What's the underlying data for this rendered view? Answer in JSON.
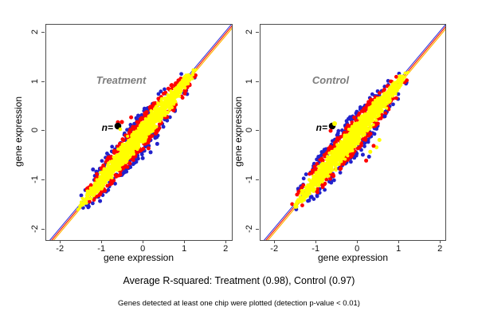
{
  "captions": {
    "r_squared": "Average R-squared: Treatment (0.98), Control (0.97)",
    "note": "Genes detected at least one chip were plotted (detection p-value < 0.01)"
  },
  "colors": {
    "dense_points": "#ffff00",
    "edge_points": "#ff0000",
    "outer_points": "#2222cc",
    "line_blue": "#4444dd",
    "line_red": "#ff2000",
    "line_yellow": "#ffb300",
    "axis": "#4d4d4d",
    "title_gray": "#7d7d7d"
  },
  "chart_data": [
    {
      "type": "scatter",
      "title": "Treatment",
      "xlabel": "gene expression",
      "ylabel": "gene expression",
      "xticks": [
        -2,
        -1,
        0,
        1,
        2
      ],
      "yticks": [
        -2,
        -1,
        0,
        1,
        2
      ],
      "xlim": [
        -2.35,
        2.13
      ],
      "ylim": [
        -2.21,
        2.16
      ],
      "n_label": "n=",
      "r_squared": 0.98,
      "identity_line": {
        "slope": 1,
        "intercept": 0,
        "colors": [
          "#4444dd",
          "#ff2000",
          "#ffb300"
        ]
      },
      "cloud": {
        "seed": 11,
        "t_min": -1.62,
        "t_max": 1.28,
        "mid": -0.16,
        "span": 1.46,
        "max_halfwidth": 0.21,
        "n_dense": 1600,
        "n_edge": 250,
        "n_outer": 150
      },
      "outliers": [
        {
          "x": 0.17,
          "y": -0.43,
          "c": "#2222cc"
        },
        {
          "x": 0.33,
          "y": -0.26,
          "c": "#2222cc"
        },
        {
          "x": -0.02,
          "y": -0.55,
          "c": "#2222cc"
        },
        {
          "x": -1.22,
          "y": -0.78,
          "c": "#2222cc"
        },
        {
          "x": -1.05,
          "y": -1.42,
          "c": "#2222cc"
        },
        {
          "x": -0.62,
          "y": 0.18,
          "c": "#ff0000"
        },
        {
          "x": -0.3,
          "y": 0.28,
          "c": "#ff0000"
        },
        {
          "x": 0.12,
          "y": -0.35,
          "c": "#ff0000"
        }
      ]
    },
    {
      "type": "scatter",
      "title": "Control",
      "xlabel": "gene expression",
      "ylabel": "gene expression",
      "xticks": [
        -2,
        -1,
        0,
        1,
        2
      ],
      "yticks": [
        -2,
        -1,
        0,
        1,
        2
      ],
      "xlim": [
        -2.35,
        2.13
      ],
      "ylim": [
        -2.21,
        2.16
      ],
      "n_label": "n=",
      "r_squared": 0.97,
      "identity_line": {
        "slope": 1,
        "intercept": 0,
        "colors": [
          "#4444dd",
          "#ff2000",
          "#ffb300"
        ]
      },
      "cloud": {
        "seed": 77,
        "t_min": -1.58,
        "t_max": 1.22,
        "mid": -0.18,
        "span": 1.42,
        "max_halfwidth": 0.22,
        "n_dense": 1600,
        "n_edge": 180,
        "n_outer": 170
      },
      "outliers": [
        {
          "x": 0.45,
          "y": -0.33,
          "c": "#ffff00"
        },
        {
          "x": 0.52,
          "y": -0.18,
          "c": "#ffff00"
        },
        {
          "x": 0.3,
          "y": -0.42,
          "c": "#ffff00"
        },
        {
          "x": 0.27,
          "y": -0.52,
          "c": "#2222cc"
        },
        {
          "x": 0.12,
          "y": -0.48,
          "c": "#2222cc"
        },
        {
          "x": 0.65,
          "y": 0.3,
          "c": "#2222cc"
        },
        {
          "x": -0.95,
          "y": -0.52,
          "c": "#2222cc"
        },
        {
          "x": 0.2,
          "y": -0.6,
          "c": "#ff0000"
        },
        {
          "x": 0.38,
          "y": -0.3,
          "c": "#ff0000"
        }
      ]
    }
  ]
}
